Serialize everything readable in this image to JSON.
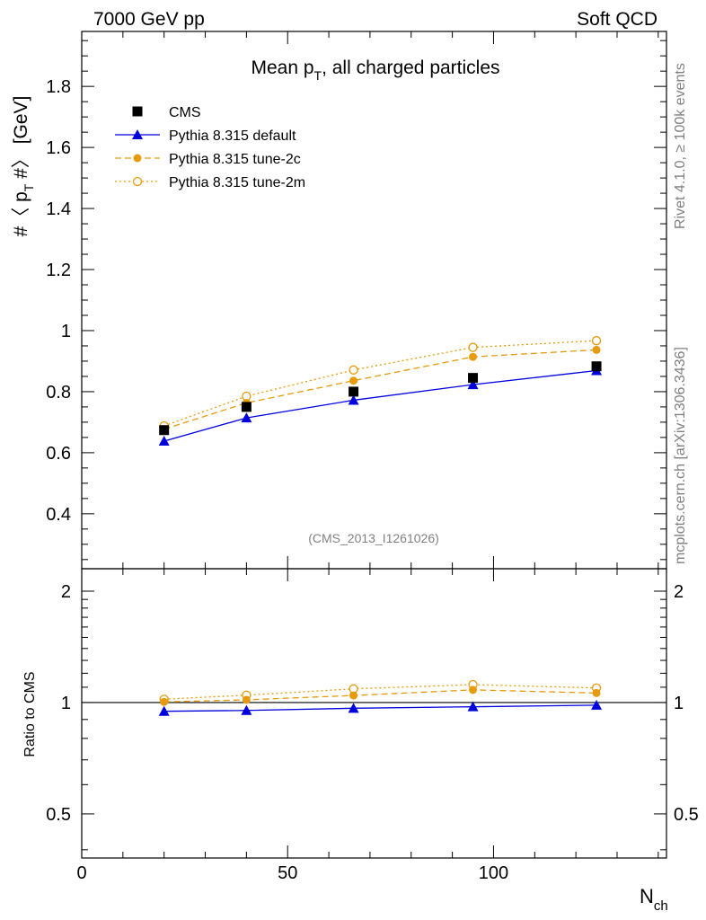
{
  "header": {
    "left": "7000 GeV pp",
    "right": "Soft QCD"
  },
  "side_labels": {
    "rivet": "Rivet 4.1.0, ≥ 100k events",
    "mcplots": "mcplots.cern.ch [arXiv:1306.3436]"
  },
  "chart_data": {
    "type": "line",
    "title": {
      "main": "Mean p",
      "sub": "T",
      "rest": ", all charged particles"
    },
    "analysis_label": "(CMS_2013_I1261026)",
    "xlabel": {
      "main": "N",
      "sub": "ch"
    },
    "ylabel": {
      "main": "#〈 p",
      "sub": "T",
      "rest": " #〉 [GeV]"
    },
    "xlim": [
      0,
      142
    ],
    "ylim": [
      0.22,
      1.98
    ],
    "x_ticks": [
      0,
      50,
      100
    ],
    "y_ticks": [
      0.4,
      0.6,
      0.8,
      1,
      1.2,
      1.4,
      1.6,
      1.8
    ],
    "y_tick_labels": [
      "0.4",
      "0.6",
      "0.8",
      "1",
      "1.2",
      "1.4",
      "1.6",
      "1.8"
    ],
    "x": [
      20,
      40,
      66,
      95,
      125
    ],
    "series": [
      {
        "name": "CMS",
        "values": [
          0.674,
          0.75,
          0.8,
          0.845,
          0.883
        ],
        "color": "#000000",
        "style": "marker",
        "marker": "square"
      },
      {
        "name": "Pythia 8.315 default",
        "values": [
          0.638,
          0.714,
          0.772,
          0.823,
          0.869
        ],
        "color": "#0000dd",
        "style": "solid",
        "marker": "triangle"
      },
      {
        "name": "Pythia 8.315 tune-2c",
        "values": [
          0.677,
          0.763,
          0.836,
          0.914,
          0.937
        ],
        "color": "#e69a0c",
        "style": "dashed",
        "marker": "circle"
      },
      {
        "name": "Pythia 8.315 tune-2m",
        "values": [
          0.688,
          0.785,
          0.871,
          0.945,
          0.967
        ],
        "color": "#e69a0c",
        "style": "dotted",
        "marker": "open-circle"
      }
    ],
    "ratio": {
      "ylabel": "Ratio to CMS",
      "ylim": [
        0.38,
        2.3
      ],
      "scale": "log",
      "ticks": [
        0.5,
        1,
        2
      ],
      "tick_labels": [
        "0.5",
        "1",
        "2"
      ],
      "series": [
        {
          "name": "Pythia 8.315 default",
          "values": [
            0.947,
            0.952,
            0.965,
            0.974,
            0.984
          ]
        },
        {
          "name": "Pythia 8.315 tune-2c",
          "values": [
            1.004,
            1.017,
            1.045,
            1.082,
            1.061
          ]
        },
        {
          "name": "Pythia 8.315 tune-2m",
          "values": [
            1.021,
            1.047,
            1.089,
            1.118,
            1.095
          ]
        }
      ]
    }
  }
}
